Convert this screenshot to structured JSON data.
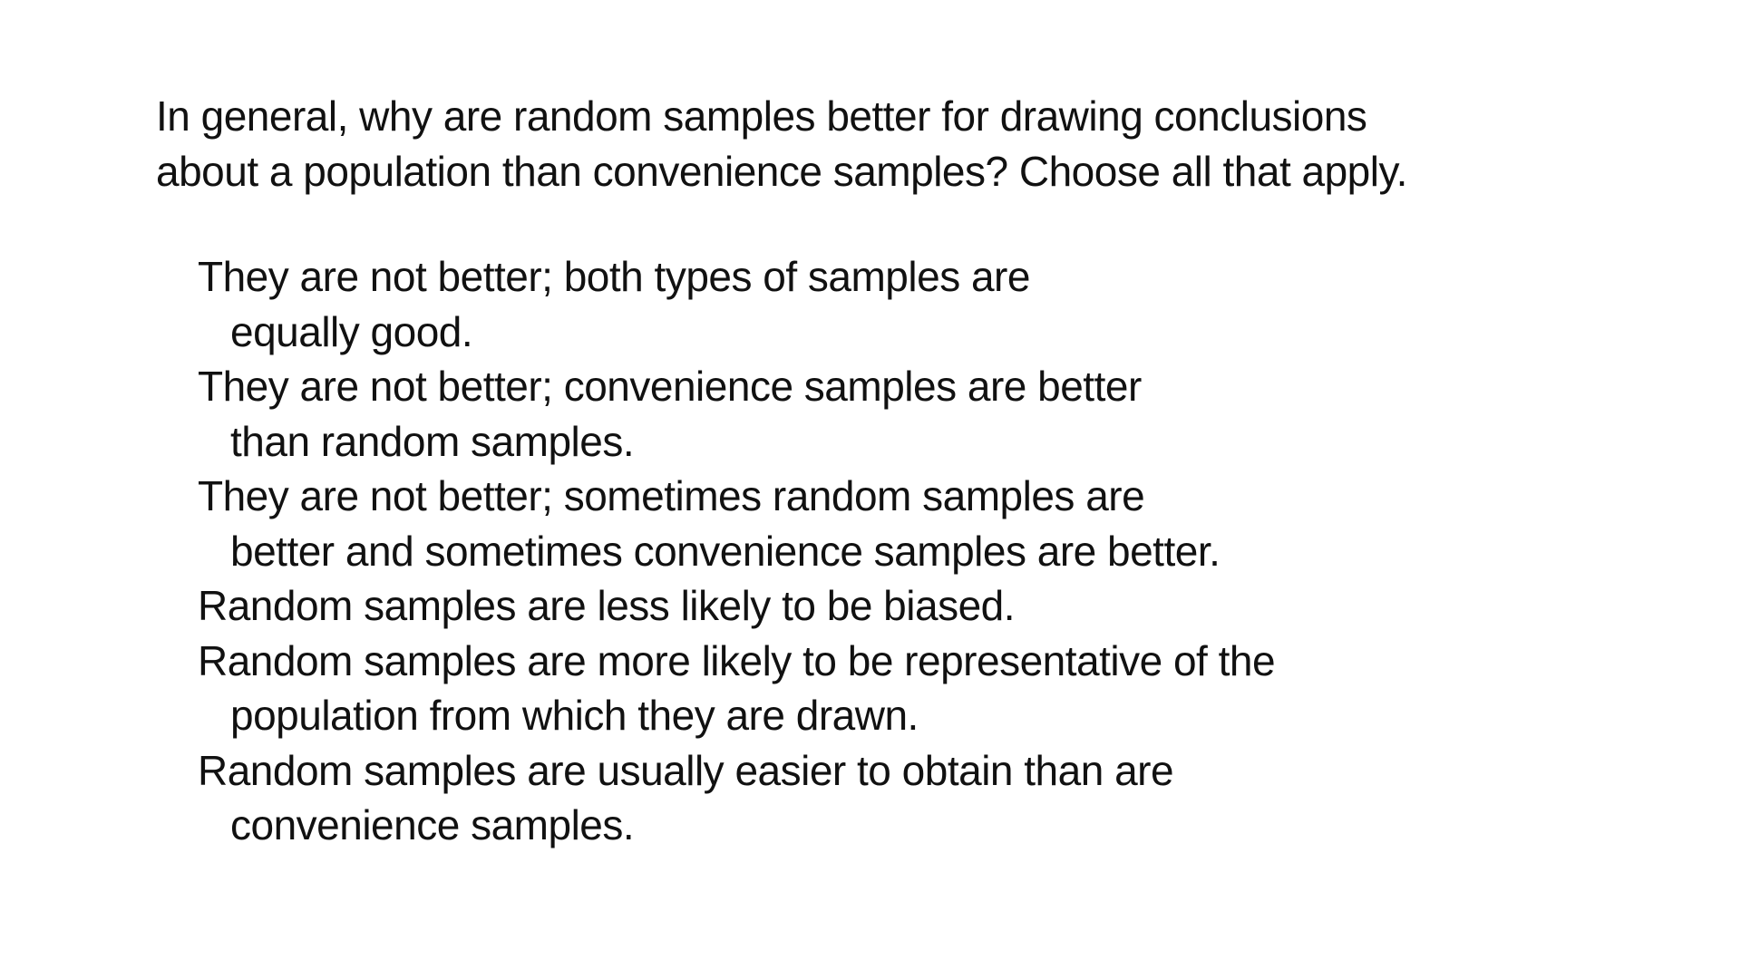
{
  "question": {
    "lines": [
      "In general, why are random samples better for drawing conclusions",
      "about a population than convenience samples? Choose all that apply."
    ]
  },
  "options": [
    {
      "lines": [
        "They are not better; both types of samples are",
        "equally good."
      ]
    },
    {
      "lines": [
        "They are not better; convenience samples are better",
        "than random samples."
      ]
    },
    {
      "lines": [
        "They are not better; sometimes random samples are",
        "better and sometimes convenience samples are better."
      ]
    },
    {
      "lines": [
        "Random samples are less likely to be biased."
      ]
    },
    {
      "lines": [
        "Random samples are more likely to be representative of the",
        "population from which they are drawn."
      ]
    },
    {
      "lines": [
        "Random samples are usually easier to obtain than are",
        "convenience samples."
      ]
    }
  ]
}
